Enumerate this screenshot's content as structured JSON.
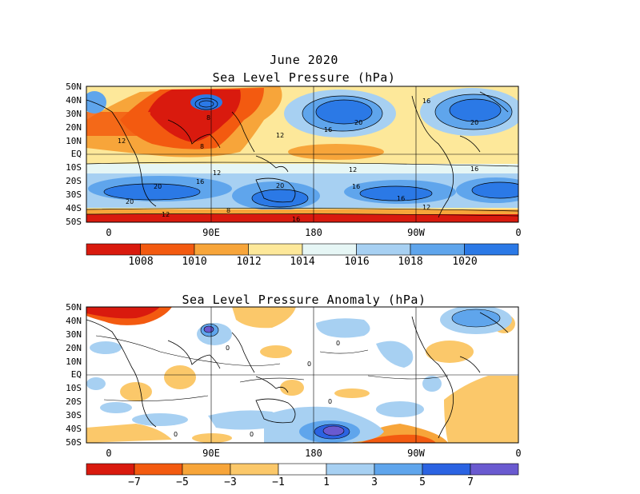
{
  "top": {
    "title_line1": "June 2020",
    "title_line2": "Sea Level Pressure (hPa)",
    "lat_labels": [
      "50N",
      "40N",
      "30N",
      "20N",
      "10N",
      "EQ",
      "10S",
      "20S",
      "30S",
      "40S",
      "50S"
    ],
    "lon_labels": [
      "0",
      "90E",
      "180",
      "90W",
      "0"
    ],
    "colorbar_labels": [
      "1008",
      "1010",
      "1012",
      "1014",
      "1016",
      "1018",
      "1020"
    ],
    "colorbar_colors": [
      "#d91a0e",
      "#f35a10",
      "#f7a53a",
      "#fde89a",
      "#e6f6f5",
      "#a7d0f2",
      "#5fa5ec",
      "#2b79e6"
    ],
    "contour_labels": [
      "12",
      "8",
      "16",
      "20",
      "12",
      "8",
      "12",
      "20",
      "16",
      "12",
      "16",
      "20",
      "20",
      "16",
      "12",
      "16",
      "20",
      "12",
      "8",
      "16",
      "16"
    ]
  },
  "bottom": {
    "title": "Sea Level Pressure Anomaly (hPa)",
    "lat_labels": [
      "50N",
      "40N",
      "30N",
      "20N",
      "10N",
      "EQ",
      "10S",
      "20S",
      "30S",
      "40S",
      "50S"
    ],
    "lon_labels": [
      "0",
      "90E",
      "180",
      "90W",
      "0"
    ],
    "colorbar_labels": [
      "−7",
      "−5",
      "−3",
      "−1",
      "1",
      "3",
      "5",
      "7"
    ],
    "colorbar_colors": [
      "#d91a0e",
      "#f35a10",
      "#f7a53a",
      "#fbc86a",
      "#ffffff",
      "#a7d0f2",
      "#5fa5ec",
      "#2b63e2",
      "#6a5ad0"
    ],
    "contour_labels": [
      "0",
      "0",
      "0",
      "0",
      "0",
      "0"
    ]
  }
}
